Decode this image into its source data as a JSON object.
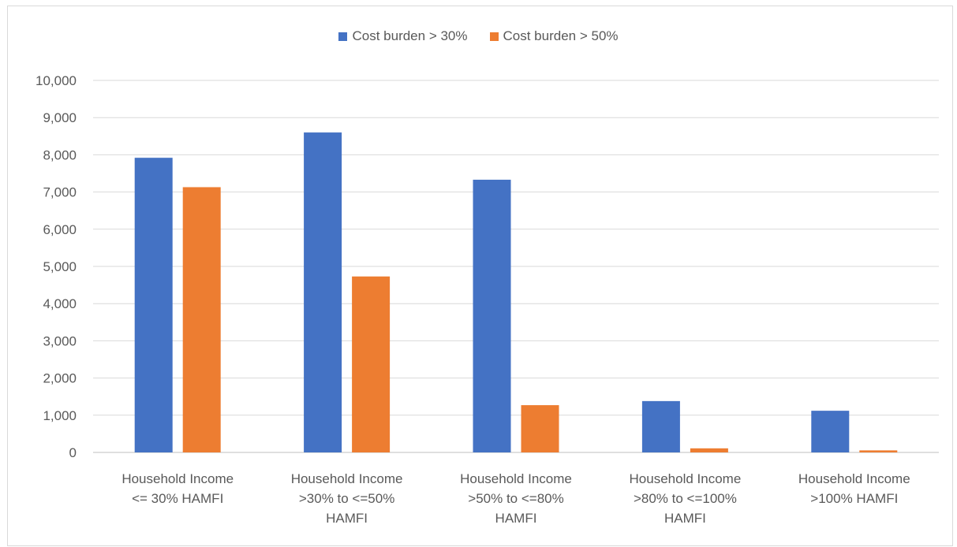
{
  "chart_data": {
    "type": "bar",
    "categories": [
      [
        "Household Income",
        "<= 30% HAMFI"
      ],
      [
        "Household Income",
        ">30% to <=50%",
        "HAMFI"
      ],
      [
        "Household Income",
        ">50% to <=80%",
        "HAMFI"
      ],
      [
        "Household Income",
        ">80% to <=100%",
        "HAMFI"
      ],
      [
        "Household Income",
        ">100% HAMFI"
      ]
    ],
    "series": [
      {
        "name": "Cost burden > 30%",
        "color": "#4472c4",
        "values": [
          7920,
          8600,
          7330,
          1380,
          1120
        ]
      },
      {
        "name": "Cost burden > 50%",
        "color": "#ed7d31",
        "values": [
          7130,
          4730,
          1270,
          110,
          55
        ]
      }
    ],
    "ylim": [
      0,
      10000
    ],
    "yticks": [
      "0",
      "1,000",
      "2,000",
      "3,000",
      "4,000",
      "5,000",
      "6,000",
      "7,000",
      "8,000",
      "9,000",
      "10,000"
    ],
    "grid": true,
    "legend_position": "top-center",
    "gridline_color": "#d9d9d9"
  }
}
